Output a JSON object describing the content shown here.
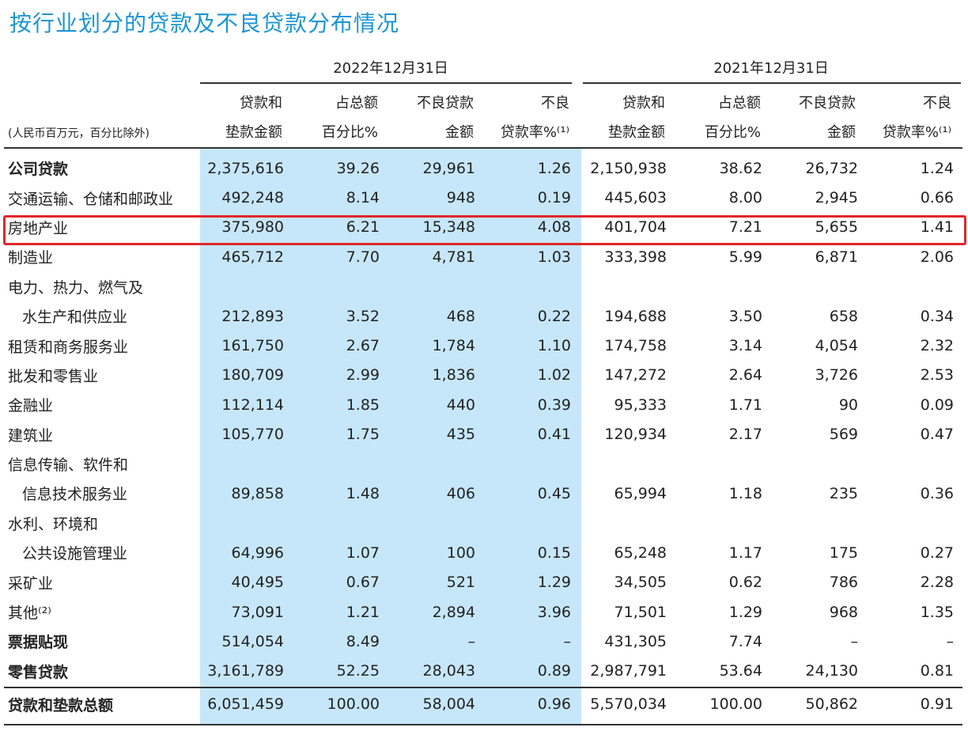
{
  "title": "按行业划分的贷款及不良贷款分布情况",
  "unit_note": "(人民币百万元，百分比除外)",
  "periods": [
    "2022年12月31日",
    "2021年12月31日"
  ],
  "columns": [
    [
      "贷款和",
      "垫款金额"
    ],
    [
      "占总额",
      "百分比%"
    ],
    [
      "不良贷款",
      "金额"
    ],
    [
      "不良",
      "贷款率%⁽¹⁾"
    ],
    [
      "贷款和",
      "垫款金额"
    ],
    [
      "占总额",
      "百分比%"
    ],
    [
      "不良贷款",
      "金额"
    ],
    [
      "不良",
      "贷款率%⁽¹⁾"
    ]
  ],
  "highlight_color": "#c6e7f9",
  "highlight_row_color": "#e0262b",
  "rows": [
    {
      "label": "公司贷款",
      "bold": true,
      "values": [
        "2,375,616",
        "39.26",
        "29,961",
        "1.26",
        "2,150,938",
        "38.62",
        "26,732",
        "1.24"
      ]
    },
    {
      "label": "交通运输、仓储和邮政业",
      "values": [
        "492,248",
        "8.14",
        "948",
        "0.19",
        "445,603",
        "8.00",
        "2,945",
        "0.66"
      ]
    },
    {
      "label": "房地产业",
      "highlighted": true,
      "values": [
        "375,980",
        "6.21",
        "15,348",
        "4.08",
        "401,704",
        "7.21",
        "5,655",
        "1.41"
      ]
    },
    {
      "label": "制造业",
      "values": [
        "465,712",
        "7.70",
        "4,781",
        "1.03",
        "333,398",
        "5.99",
        "6,871",
        "2.06"
      ]
    },
    {
      "label": "电力、热力、燃气及",
      "values": []
    },
    {
      "label": "水生产和供应业",
      "indent": true,
      "values": [
        "212,893",
        "3.52",
        "468",
        "0.22",
        "194,688",
        "3.50",
        "658",
        "0.34"
      ]
    },
    {
      "label": "租赁和商务服务业",
      "values": [
        "161,750",
        "2.67",
        "1,784",
        "1.10",
        "174,758",
        "3.14",
        "4,054",
        "2.32"
      ]
    },
    {
      "label": "批发和零售业",
      "values": [
        "180,709",
        "2.99",
        "1,836",
        "1.02",
        "147,272",
        "2.64",
        "3,726",
        "2.53"
      ]
    },
    {
      "label": "金融业",
      "values": [
        "112,114",
        "1.85",
        "440",
        "0.39",
        "95,333",
        "1.71",
        "90",
        "0.09"
      ]
    },
    {
      "label": "建筑业",
      "values": [
        "105,770",
        "1.75",
        "435",
        "0.41",
        "120,934",
        "2.17",
        "569",
        "0.47"
      ]
    },
    {
      "label": "信息传输、软件和",
      "values": []
    },
    {
      "label": "信息技术服务业",
      "indent": true,
      "values": [
        "89,858",
        "1.48",
        "406",
        "0.45",
        "65,994",
        "1.18",
        "235",
        "0.36"
      ]
    },
    {
      "label": "水利、环境和",
      "values": []
    },
    {
      "label": "公共设施管理业",
      "indent": true,
      "values": [
        "64,996",
        "1.07",
        "100",
        "0.15",
        "65,248",
        "1.17",
        "175",
        "0.27"
      ]
    },
    {
      "label": "采矿业",
      "values": [
        "40,495",
        "0.67",
        "521",
        "1.29",
        "34,505",
        "0.62",
        "786",
        "2.28"
      ]
    },
    {
      "label": "其他⁽²⁾",
      "values": [
        "73,091",
        "1.21",
        "2,894",
        "3.96",
        "71,501",
        "1.29",
        "968",
        "1.35"
      ]
    },
    {
      "label": "票据贴现",
      "bold": true,
      "values": [
        "514,054",
        "8.49",
        "–",
        "–",
        "431,305",
        "7.74",
        "–",
        "–"
      ]
    },
    {
      "label": "零售贷款",
      "bold": true,
      "values": [
        "3,161,789",
        "52.25",
        "28,043",
        "0.89",
        "2,987,791",
        "53.64",
        "24,130",
        "0.81"
      ]
    }
  ],
  "total": {
    "label": "贷款和垫款总额",
    "values": [
      "6,051,459",
      "100.00",
      "58,004",
      "0.96",
      "5,570,034",
      "100.00",
      "50,862",
      "0.91"
    ]
  }
}
